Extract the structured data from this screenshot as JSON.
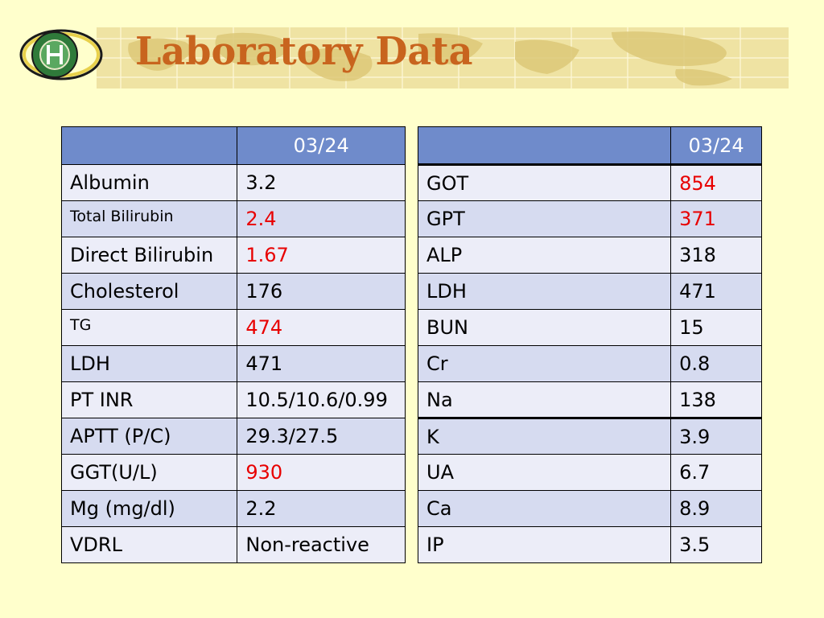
{
  "slide": {
    "title": "Laboratory Data",
    "logo": {
      "name": "hospital-seal-logo",
      "colors": {
        "ring": "#e8d04a",
        "inner": "#2f7a3a",
        "border": "#1a1a1a"
      }
    },
    "colors": {
      "background": "#ffffcc",
      "title": "#c8641e",
      "header": "#6f8bcb",
      "row_dark": "#d6dbf0",
      "row_light": "#ecedf8",
      "abnormal": "#e80000"
    }
  },
  "left_table": {
    "header": {
      "label": "",
      "date": "03/24"
    },
    "rows": [
      {
        "label": "Albumin",
        "value": "3.2",
        "abnormal": false,
        "small": false
      },
      {
        "label": "Total Bilirubin",
        "value": "2.4",
        "abnormal": true,
        "small": true
      },
      {
        "label": "Direct Bilirubin",
        "value": "1.67",
        "abnormal": true,
        "small": false
      },
      {
        "label": "Cholesterol",
        "value": "176",
        "abnormal": false,
        "small": false
      },
      {
        "label": "TG",
        "value": "474",
        "abnormal": true,
        "small": true
      },
      {
        "label": "LDH",
        "value": "471",
        "abnormal": false,
        "small": false
      },
      {
        "label": "PT INR",
        "value": "10.5/10.6/0.99",
        "abnormal": false,
        "small": false
      },
      {
        "label": "APTT (P/C)",
        "value": "29.3/27.5",
        "abnormal": false,
        "small": false
      },
      {
        "label": "GGT(U/L)",
        "value": "930",
        "abnormal": true,
        "small": false
      },
      {
        "label": "Mg (mg/dl)",
        "value": "2.2",
        "abnormal": false,
        "small": false
      },
      {
        "label": "VDRL",
        "value": "Non-reactive",
        "abnormal": false,
        "small": false
      }
    ]
  },
  "right_table": {
    "header": {
      "label": "",
      "date": "03/24"
    },
    "rows": [
      {
        "label": "GOT",
        "value": "854",
        "abnormal": true,
        "thick_top": true
      },
      {
        "label": "GPT",
        "value": "371",
        "abnormal": true,
        "thick_top": false
      },
      {
        "label": "ALP",
        "value": "318",
        "abnormal": false,
        "thick_top": false
      },
      {
        "label": "LDH",
        "value": "471",
        "abnormal": false,
        "thick_top": false
      },
      {
        "label": "BUN",
        "value": "15",
        "abnormal": false,
        "thick_top": false
      },
      {
        "label": "Cr",
        "value": "0.8",
        "abnormal": false,
        "thick_top": false
      },
      {
        "label": "Na",
        "value": "138",
        "abnormal": false,
        "thick_top": false
      },
      {
        "label": "K",
        "value": "3.9",
        "abnormal": false,
        "thick_top": true
      },
      {
        "label": "UA",
        "value": "6.7",
        "abnormal": false,
        "thick_top": false
      },
      {
        "label": "Ca",
        "value": "8.9",
        "abnormal": false,
        "thick_top": false
      },
      {
        "label": "IP",
        "value": "3.5",
        "abnormal": false,
        "thick_top": false
      }
    ]
  }
}
